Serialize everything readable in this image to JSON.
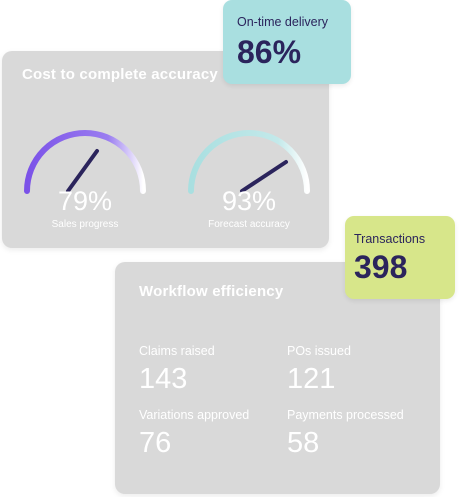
{
  "cost_card": {
    "title": "Cost to complete accuracy",
    "gauges": [
      {
        "value": "79%",
        "label": "Sales progress",
        "level": 0.79,
        "color": "#7b52e8"
      },
      {
        "value": "93%",
        "label": "Forecast accuracy",
        "level": 0.93,
        "color": "#a9dfe0"
      }
    ]
  },
  "ontime": {
    "label": "On-time delivery",
    "value": "86%",
    "color": "#a9dfe0"
  },
  "transactions": {
    "label": "Transactions",
    "value": "398",
    "color": "#d7e68a"
  },
  "workflow_card": {
    "title": "Workflow efficiency",
    "metrics": [
      {
        "label": "Claims raised",
        "value": "143"
      },
      {
        "label": "POs issued",
        "value": "121"
      },
      {
        "label": "Variations approved",
        "value": "76"
      },
      {
        "label": "Payments processed",
        "value": "58"
      }
    ]
  },
  "colors": {
    "needle": "#2b245c",
    "text_dark": "#2b245c",
    "card_grey": "#d9d9d9"
  }
}
